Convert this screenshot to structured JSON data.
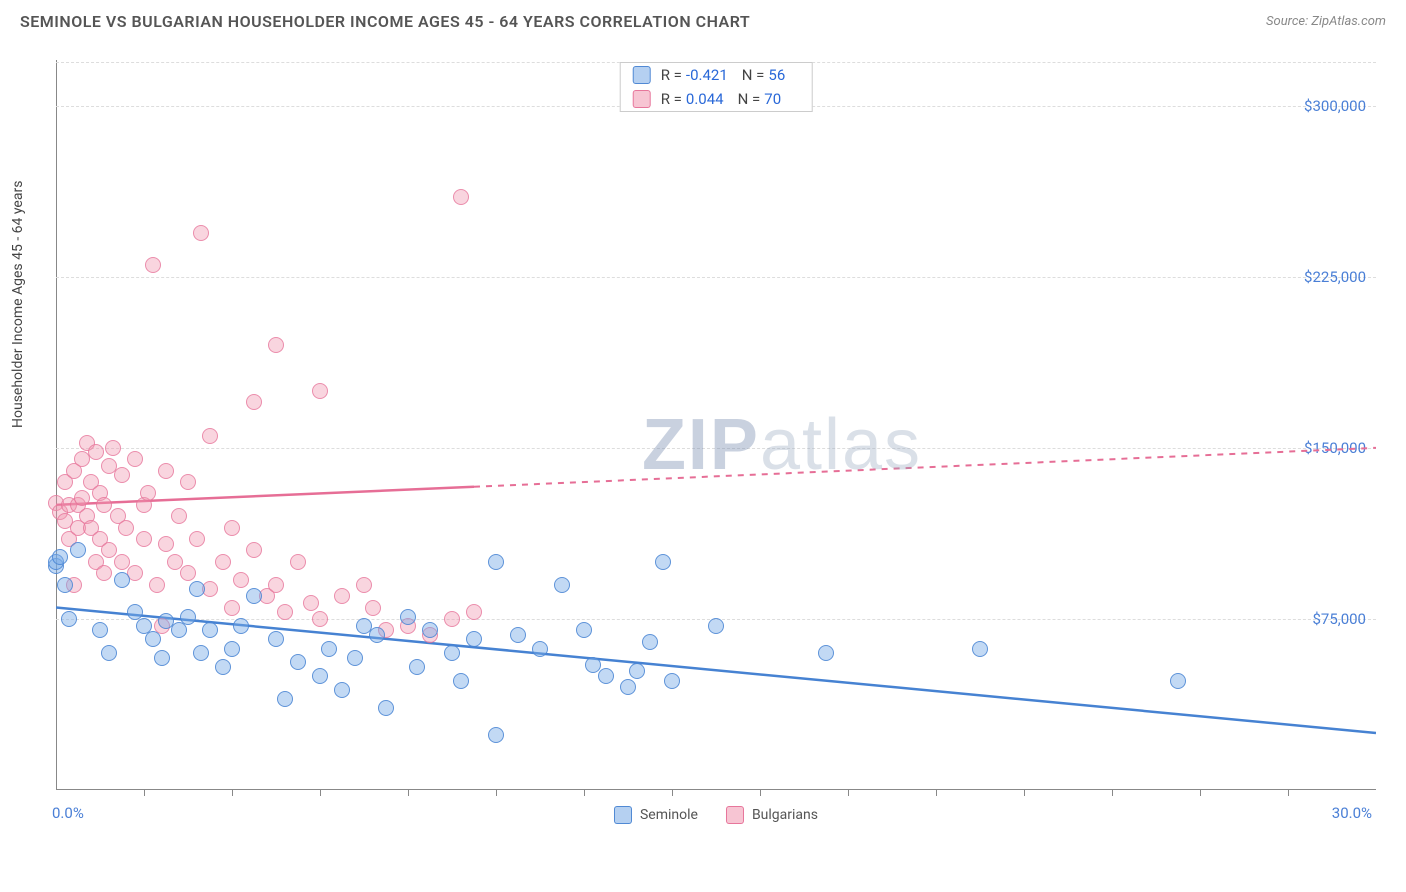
{
  "header": {
    "title": "SEMINOLE VS BULGARIAN HOUSEHOLDER INCOME AGES 45 - 64 YEARS CORRELATION CHART",
    "source": "Source: ZipAtlas.com"
  },
  "axes": {
    "y_label": "Householder Income Ages 45 - 64 years",
    "x_min": 0.0,
    "x_max": 30.0,
    "x_min_label": "0.0%",
    "x_max_label": "30.0%",
    "y_min": 0,
    "y_max": 320000,
    "y_ticks": [
      75000,
      150000,
      225000,
      300000
    ],
    "y_tick_labels": [
      "$75,000",
      "$150,000",
      "$225,000",
      "$300,000"
    ],
    "x_minor_ticks": [
      2,
      4,
      6,
      8,
      10,
      12,
      14,
      16,
      18,
      20,
      22,
      24,
      26,
      28
    ]
  },
  "style": {
    "bg": "#ffffff",
    "grid_color": "#dddddd",
    "axis_color": "#888888",
    "blue_fill": "rgba(120,170,230,0.45)",
    "blue_stroke": "#4682d2",
    "pink_fill": "rgba(240,150,175,0.4)",
    "pink_stroke": "#e66e96",
    "tick_label_color": "#4a7fd6",
    "marker_radius": 8
  },
  "legend_top": {
    "rows": [
      {
        "swatch": "blue",
        "r_label": "R =",
        "r": "-0.421",
        "n_label": "N =",
        "n": "56"
      },
      {
        "swatch": "pink",
        "r_label": "R =",
        "r": "0.044",
        "n_label": "N =",
        "n": "70"
      }
    ]
  },
  "legend_bottom": {
    "items": [
      {
        "swatch": "blue",
        "label": "Seminole"
      },
      {
        "swatch": "pink",
        "label": "Bulgarians"
      }
    ]
  },
  "watermark": {
    "part1": "ZIP",
    "part2": "atlas"
  },
  "series": {
    "seminole": {
      "color": "blue",
      "trend": {
        "y_at_xmin": 80000,
        "y_at_xmax": 25000,
        "solid_until_x": 30
      },
      "points": [
        [
          0.0,
          98000
        ],
        [
          0.2,
          90000
        ],
        [
          0.0,
          100000
        ],
        [
          0.3,
          75000
        ],
        [
          0.5,
          105000
        ],
        [
          1.0,
          70000
        ],
        [
          1.2,
          60000
        ],
        [
          1.5,
          92000
        ],
        [
          1.8,
          78000
        ],
        [
          2.0,
          72000
        ],
        [
          2.2,
          66000
        ],
        [
          2.4,
          58000
        ],
        [
          2.5,
          74000
        ],
        [
          2.8,
          70000
        ],
        [
          3.0,
          76000
        ],
        [
          3.2,
          88000
        ],
        [
          3.3,
          60000
        ],
        [
          3.5,
          70000
        ],
        [
          3.8,
          54000
        ],
        [
          4.0,
          62000
        ],
        [
          4.2,
          72000
        ],
        [
          4.5,
          85000
        ],
        [
          5.0,
          66000
        ],
        [
          5.2,
          40000
        ],
        [
          5.5,
          56000
        ],
        [
          6.0,
          50000
        ],
        [
          6.2,
          62000
        ],
        [
          6.5,
          44000
        ],
        [
          6.8,
          58000
        ],
        [
          7.0,
          72000
        ],
        [
          7.3,
          68000
        ],
        [
          7.5,
          36000
        ],
        [
          8.0,
          76000
        ],
        [
          8.2,
          54000
        ],
        [
          8.5,
          70000
        ],
        [
          9.0,
          60000
        ],
        [
          9.2,
          48000
        ],
        [
          9.5,
          66000
        ],
        [
          10.0,
          100000
        ],
        [
          10.0,
          24000
        ],
        [
          10.5,
          68000
        ],
        [
          11.0,
          62000
        ],
        [
          11.5,
          90000
        ],
        [
          12.0,
          70000
        ],
        [
          12.2,
          55000
        ],
        [
          12.5,
          50000
        ],
        [
          13.0,
          45000
        ],
        [
          13.2,
          52000
        ],
        [
          13.5,
          65000
        ],
        [
          13.8,
          100000
        ],
        [
          14.0,
          48000
        ],
        [
          15.0,
          72000
        ],
        [
          17.5,
          60000
        ],
        [
          21.0,
          62000
        ],
        [
          25.5,
          48000
        ],
        [
          0.1,
          102000
        ]
      ]
    },
    "bulgarians": {
      "color": "pink",
      "trend": {
        "y_at_xmin": 125000,
        "y_at_xmax": 150000,
        "solid_until_x": 9.5
      },
      "points": [
        [
          0.0,
          126000
        ],
        [
          0.1,
          122000
        ],
        [
          0.2,
          118000
        ],
        [
          0.2,
          135000
        ],
        [
          0.3,
          125000
        ],
        [
          0.3,
          110000
        ],
        [
          0.4,
          140000
        ],
        [
          0.5,
          125000
        ],
        [
          0.5,
          115000
        ],
        [
          0.6,
          145000
        ],
        [
          0.6,
          128000
        ],
        [
          0.7,
          120000
        ],
        [
          0.7,
          152000
        ],
        [
          0.8,
          135000
        ],
        [
          0.8,
          115000
        ],
        [
          0.9,
          148000
        ],
        [
          1.0,
          130000
        ],
        [
          1.0,
          110000
        ],
        [
          1.1,
          125000
        ],
        [
          1.2,
          142000
        ],
        [
          1.2,
          105000
        ],
        [
          1.3,
          150000
        ],
        [
          1.4,
          120000
        ],
        [
          1.5,
          138000
        ],
        [
          1.5,
          100000
        ],
        [
          1.6,
          115000
        ],
        [
          1.8,
          145000
        ],
        [
          1.8,
          95000
        ],
        [
          2.0,
          110000
        ],
        [
          2.0,
          125000
        ],
        [
          2.1,
          130000
        ],
        [
          2.2,
          230000
        ],
        [
          2.3,
          90000
        ],
        [
          2.5,
          108000
        ],
        [
          2.5,
          140000
        ],
        [
          2.7,
          100000
        ],
        [
          2.8,
          120000
        ],
        [
          3.0,
          95000
        ],
        [
          3.0,
          135000
        ],
        [
          3.2,
          110000
        ],
        [
          3.3,
          244000
        ],
        [
          3.5,
          88000
        ],
        [
          3.5,
          155000
        ],
        [
          3.8,
          100000
        ],
        [
          4.0,
          115000
        ],
        [
          4.0,
          80000
        ],
        [
          4.2,
          92000
        ],
        [
          4.5,
          105000
        ],
        [
          4.5,
          170000
        ],
        [
          4.8,
          85000
        ],
        [
          5.0,
          195000
        ],
        [
          5.0,
          90000
        ],
        [
          5.2,
          78000
        ],
        [
          5.5,
          100000
        ],
        [
          5.8,
          82000
        ],
        [
          6.0,
          175000
        ],
        [
          6.0,
          75000
        ],
        [
          6.5,
          85000
        ],
        [
          7.0,
          90000
        ],
        [
          7.2,
          80000
        ],
        [
          7.5,
          70000
        ],
        [
          8.0,
          72000
        ],
        [
          8.5,
          68000
        ],
        [
          9.0,
          75000
        ],
        [
          9.2,
          260000
        ],
        [
          9.5,
          78000
        ],
        [
          0.4,
          90000
        ],
        [
          0.9,
          100000
        ],
        [
          1.1,
          95000
        ],
        [
          2.4,
          72000
        ]
      ]
    }
  }
}
